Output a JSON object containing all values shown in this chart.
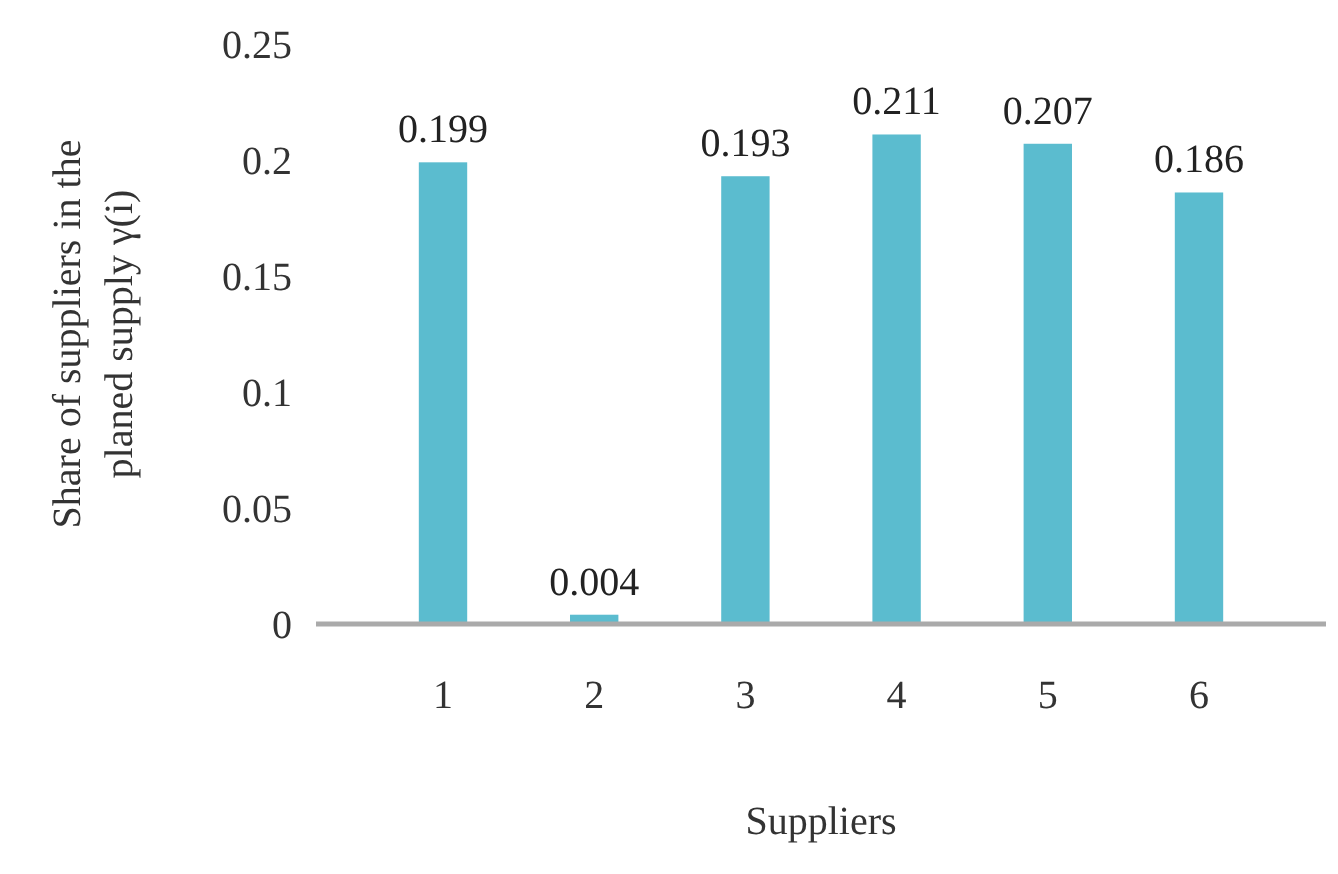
{
  "chart_data": {
    "type": "bar",
    "xlabel": "Suppliers",
    "ylabel": "Share of suppliers in the planed supply γ(i)",
    "categories": [
      "1",
      "2",
      "3",
      "4",
      "5",
      "6"
    ],
    "values": [
      0.199,
      0.004,
      0.193,
      0.211,
      0.207,
      0.186
    ],
    "color": "#5bbccf",
    "ylim": [
      0,
      0.25
    ],
    "yticks": [
      0,
      0.05,
      0.1,
      0.15,
      0.2,
      0.25
    ],
    "grid": false,
    "data_labels": true
  }
}
